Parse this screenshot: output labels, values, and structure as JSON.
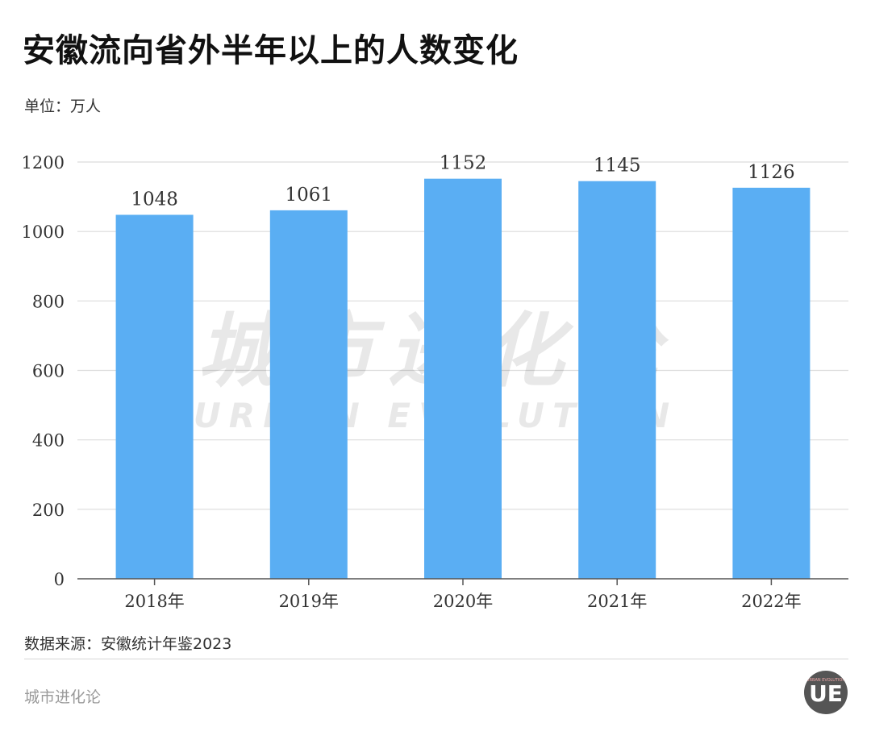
{
  "title": "安徽流向省外半年以上的人数变化",
  "unit": "单位：万人",
  "source": "数据来源：安徽统计年鉴2023",
  "brand": "城市进化论",
  "watermark": {
    "cn": "城市进化论",
    "en": "URBAN EVOLUTION"
  },
  "logo": {
    "mark": "UE",
    "ring": "URBAN EVOLUTION"
  },
  "colors": {
    "bar": "#5aaef3",
    "grid": "#dcdcdc",
    "axis": "#555555",
    "logo_bg": "#555555"
  },
  "chart_data": {
    "type": "bar",
    "categories": [
      "2018年",
      "2019年",
      "2020年",
      "2021年",
      "2022年"
    ],
    "values": [
      1048,
      1061,
      1152,
      1145,
      1126
    ],
    "ylim": [
      0,
      1200
    ],
    "yticks": [
      "0",
      "200",
      "400",
      "600",
      "800",
      "1000",
      "1200"
    ],
    "grid": true,
    "legend": "none"
  }
}
